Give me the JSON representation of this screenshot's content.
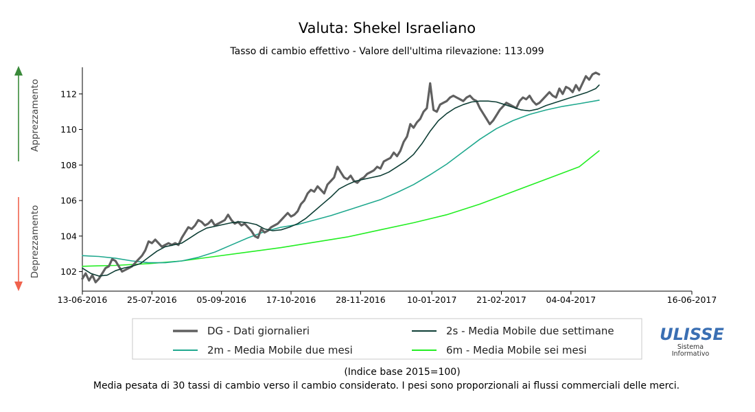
{
  "title": "Valuta: Shekel Israeliano",
  "subtitle": "Tasso di cambio effettivo - Valore dell'ultima rilevazione: 113.099",
  "side_labels": {
    "up": "Apprezzamento",
    "down": "Deprezzamento",
    "up_color": "#3a8a3a",
    "down_color": "#f0624d"
  },
  "footer": {
    "line1": "(Indice base 2015=100)",
    "line2": "Media pesata di 30 tassi di cambio verso il cambio considerato. I pesi sono proporzionali ai flussi commerciali delle merci."
  },
  "logo": {
    "name": "ULISSE",
    "line1": "Sistema",
    "line2": "Informativo",
    "color": "#3a6fb3"
  },
  "chart_data": {
    "type": "line",
    "x_tick_labels": [
      "13-06-2016",
      "25-07-2016",
      "05-09-2016",
      "17-10-2016",
      "28-11-2016",
      "10-01-2017",
      "21-02-2017",
      "04-04-2017",
      "16-06-2017"
    ],
    "x_tick_days": [
      0,
      42,
      84,
      126,
      168,
      211,
      253,
      295,
      368
    ],
    "x_range_days": [
      0,
      368
    ],
    "y_ticks": [
      102,
      104,
      106,
      108,
      110,
      112
    ],
    "ylim": [
      100.9,
      113.5
    ],
    "grid": false,
    "legend_position": "bottom",
    "series": [
      {
        "key": "dg",
        "name": "DG - Dati giornalieri",
        "color": "#606060",
        "points": [
          [
            0,
            101.6
          ],
          [
            2,
            101.9
          ],
          [
            4,
            101.5
          ],
          [
            6,
            101.8
          ],
          [
            8,
            101.4
          ],
          [
            10,
            101.6
          ],
          [
            12,
            101.9
          ],
          [
            14,
            102.2
          ],
          [
            16,
            102.3
          ],
          [
            18,
            102.7
          ],
          [
            20,
            102.6
          ],
          [
            22,
            102.3
          ],
          [
            24,
            102.0
          ],
          [
            26,
            102.1
          ],
          [
            28,
            102.2
          ],
          [
            30,
            102.3
          ],
          [
            32,
            102.5
          ],
          [
            34,
            102.7
          ],
          [
            36,
            102.9
          ],
          [
            38,
            103.2
          ],
          [
            40,
            103.7
          ],
          [
            42,
            103.6
          ],
          [
            44,
            103.8
          ],
          [
            46,
            103.6
          ],
          [
            48,
            103.4
          ],
          [
            50,
            103.5
          ],
          [
            52,
            103.6
          ],
          [
            54,
            103.5
          ],
          [
            56,
            103.6
          ],
          [
            58,
            103.5
          ],
          [
            60,
            103.9
          ],
          [
            62,
            104.2
          ],
          [
            64,
            104.5
          ],
          [
            66,
            104.4
          ],
          [
            68,
            104.6
          ],
          [
            70,
            104.9
          ],
          [
            72,
            104.8
          ],
          [
            74,
            104.6
          ],
          [
            76,
            104.7
          ],
          [
            78,
            104.9
          ],
          [
            80,
            104.6
          ],
          [
            82,
            104.7
          ],
          [
            84,
            104.8
          ],
          [
            86,
            104.9
          ],
          [
            88,
            105.2
          ],
          [
            90,
            104.9
          ],
          [
            92,
            104.7
          ],
          [
            94,
            104.8
          ],
          [
            96,
            104.6
          ],
          [
            98,
            104.7
          ],
          [
            100,
            104.5
          ],
          [
            102,
            104.3
          ],
          [
            104,
            104.0
          ],
          [
            106,
            103.9
          ],
          [
            108,
            104.4
          ],
          [
            110,
            104.2
          ],
          [
            112,
            104.3
          ],
          [
            114,
            104.5
          ],
          [
            116,
            104.6
          ],
          [
            118,
            104.7
          ],
          [
            120,
            104.9
          ],
          [
            122,
            105.1
          ],
          [
            124,
            105.3
          ],
          [
            126,
            105.1
          ],
          [
            128,
            105.2
          ],
          [
            130,
            105.4
          ],
          [
            132,
            105.8
          ],
          [
            134,
            106.0
          ],
          [
            136,
            106.4
          ],
          [
            138,
            106.6
          ],
          [
            140,
            106.5
          ],
          [
            142,
            106.8
          ],
          [
            144,
            106.6
          ],
          [
            146,
            106.4
          ],
          [
            148,
            106.9
          ],
          [
            150,
            107.1
          ],
          [
            152,
            107.3
          ],
          [
            154,
            107.9
          ],
          [
            156,
            107.6
          ],
          [
            158,
            107.3
          ],
          [
            160,
            107.2
          ],
          [
            162,
            107.4
          ],
          [
            164,
            107.1
          ],
          [
            166,
            107.0
          ],
          [
            168,
            107.2
          ],
          [
            170,
            107.3
          ],
          [
            172,
            107.5
          ],
          [
            174,
            107.6
          ],
          [
            176,
            107.7
          ],
          [
            178,
            107.9
          ],
          [
            180,
            107.8
          ],
          [
            182,
            108.2
          ],
          [
            184,
            108.3
          ],
          [
            186,
            108.4
          ],
          [
            188,
            108.7
          ],
          [
            190,
            108.5
          ],
          [
            192,
            108.8
          ],
          [
            194,
            109.3
          ],
          [
            196,
            109.6
          ],
          [
            198,
            110.3
          ],
          [
            200,
            110.1
          ],
          [
            202,
            110.4
          ],
          [
            204,
            110.6
          ],
          [
            206,
            111.0
          ],
          [
            208,
            111.2
          ],
          [
            210,
            112.6
          ],
          [
            212,
            111.1
          ],
          [
            214,
            111.0
          ],
          [
            216,
            111.4
          ],
          [
            218,
            111.5
          ],
          [
            220,
            111.6
          ],
          [
            222,
            111.8
          ],
          [
            224,
            111.9
          ],
          [
            226,
            111.8
          ],
          [
            228,
            111.7
          ],
          [
            230,
            111.6
          ],
          [
            232,
            111.8
          ],
          [
            234,
            111.9
          ],
          [
            236,
            111.7
          ],
          [
            238,
            111.6
          ],
          [
            240,
            111.2
          ],
          [
            242,
            110.9
          ],
          [
            244,
            110.6
          ],
          [
            246,
            110.3
          ],
          [
            248,
            110.5
          ],
          [
            250,
            110.8
          ],
          [
            252,
            111.1
          ],
          [
            254,
            111.3
          ],
          [
            256,
            111.5
          ],
          [
            258,
            111.4
          ],
          [
            260,
            111.3
          ],
          [
            262,
            111.2
          ],
          [
            264,
            111.6
          ],
          [
            266,
            111.8
          ],
          [
            268,
            111.7
          ],
          [
            270,
            111.9
          ],
          [
            272,
            111.6
          ],
          [
            274,
            111.4
          ],
          [
            276,
            111.5
          ],
          [
            278,
            111.7
          ],
          [
            280,
            111.9
          ],
          [
            282,
            112.1
          ],
          [
            284,
            111.9
          ],
          [
            286,
            111.8
          ],
          [
            288,
            112.3
          ],
          [
            290,
            112.0
          ],
          [
            292,
            112.4
          ],
          [
            294,
            112.3
          ],
          [
            296,
            112.1
          ],
          [
            298,
            112.5
          ],
          [
            300,
            112.2
          ],
          [
            302,
            112.6
          ],
          [
            304,
            113.0
          ],
          [
            306,
            112.8
          ],
          [
            308,
            113.1
          ],
          [
            310,
            113.2
          ],
          [
            312,
            113.1
          ]
        ]
      },
      {
        "key": "s2",
        "name": "2s - Media Mobile due settimane",
        "color": "#0d3d34",
        "points": [
          [
            0,
            102.2
          ],
          [
            5,
            101.9
          ],
          [
            10,
            101.75
          ],
          [
            15,
            101.8
          ],
          [
            20,
            102.05
          ],
          [
            25,
            102.2
          ],
          [
            30,
            102.3
          ],
          [
            35,
            102.45
          ],
          [
            40,
            102.8
          ],
          [
            45,
            103.15
          ],
          [
            50,
            103.4
          ],
          [
            55,
            103.5
          ],
          [
            60,
            103.6
          ],
          [
            65,
            103.9
          ],
          [
            70,
            104.2
          ],
          [
            75,
            104.45
          ],
          [
            80,
            104.55
          ],
          [
            85,
            104.65
          ],
          [
            90,
            104.75
          ],
          [
            95,
            104.8
          ],
          [
            100,
            104.75
          ],
          [
            105,
            104.65
          ],
          [
            110,
            104.4
          ],
          [
            115,
            104.3
          ],
          [
            120,
            104.35
          ],
          [
            125,
            104.5
          ],
          [
            130,
            104.7
          ],
          [
            135,
            105.0
          ],
          [
            140,
            105.4
          ],
          [
            145,
            105.8
          ],
          [
            150,
            106.2
          ],
          [
            155,
            106.65
          ],
          [
            160,
            106.9
          ],
          [
            165,
            107.1
          ],
          [
            170,
            107.2
          ],
          [
            175,
            107.3
          ],
          [
            180,
            107.4
          ],
          [
            185,
            107.6
          ],
          [
            190,
            107.9
          ],
          [
            195,
            108.2
          ],
          [
            200,
            108.6
          ],
          [
            205,
            109.2
          ],
          [
            210,
            109.9
          ],
          [
            215,
            110.5
          ],
          [
            220,
            110.9
          ],
          [
            225,
            111.2
          ],
          [
            230,
            111.4
          ],
          [
            235,
            111.55
          ],
          [
            240,
            111.6
          ],
          [
            245,
            111.6
          ],
          [
            250,
            111.55
          ],
          [
            255,
            111.4
          ],
          [
            260,
            111.25
          ],
          [
            265,
            111.1
          ],
          [
            270,
            111.05
          ],
          [
            275,
            111.15
          ],
          [
            280,
            111.35
          ],
          [
            285,
            111.5
          ],
          [
            290,
            111.65
          ],
          [
            295,
            111.8
          ],
          [
            300,
            111.95
          ],
          [
            305,
            112.1
          ],
          [
            310,
            112.3
          ],
          [
            312,
            112.5
          ]
        ]
      },
      {
        "key": "m2",
        "name": "2m - Media Mobile due mesi",
        "color": "#1fa88e",
        "points": [
          [
            0,
            102.9
          ],
          [
            10,
            102.85
          ],
          [
            20,
            102.75
          ],
          [
            30,
            102.6
          ],
          [
            40,
            102.5
          ],
          [
            50,
            102.5
          ],
          [
            60,
            102.6
          ],
          [
            70,
            102.8
          ],
          [
            80,
            103.1
          ],
          [
            90,
            103.5
          ],
          [
            100,
            103.9
          ],
          [
            110,
            104.25
          ],
          [
            120,
            104.5
          ],
          [
            130,
            104.65
          ],
          [
            140,
            104.9
          ],
          [
            150,
            105.15
          ],
          [
            160,
            105.45
          ],
          [
            170,
            105.75
          ],
          [
            180,
            106.05
          ],
          [
            190,
            106.45
          ],
          [
            200,
            106.9
          ],
          [
            210,
            107.45
          ],
          [
            220,
            108.05
          ],
          [
            230,
            108.75
          ],
          [
            240,
            109.45
          ],
          [
            250,
            110.05
          ],
          [
            260,
            110.5
          ],
          [
            270,
            110.85
          ],
          [
            280,
            111.1
          ],
          [
            290,
            111.3
          ],
          [
            300,
            111.45
          ],
          [
            312,
            111.65
          ]
        ]
      },
      {
        "key": "m6",
        "name": "6m - Media Mobile sei mesi",
        "color": "#22ee22",
        "points": [
          [
            0,
            102.3
          ],
          [
            20,
            102.35
          ],
          [
            40,
            102.45
          ],
          [
            60,
            102.6
          ],
          [
            80,
            102.85
          ],
          [
            100,
            103.1
          ],
          [
            120,
            103.35
          ],
          [
            140,
            103.65
          ],
          [
            160,
            103.95
          ],
          [
            180,
            104.35
          ],
          [
            200,
            104.75
          ],
          [
            220,
            105.2
          ],
          [
            240,
            105.8
          ],
          [
            260,
            106.5
          ],
          [
            280,
            107.2
          ],
          [
            300,
            107.9
          ],
          [
            312,
            108.8
          ]
        ]
      }
    ]
  }
}
